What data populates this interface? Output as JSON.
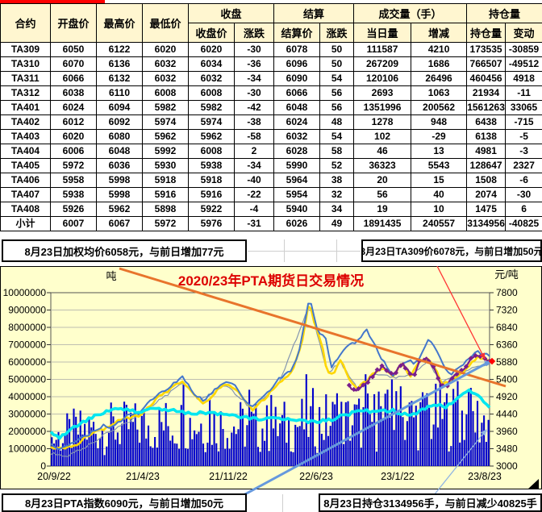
{
  "page": {
    "red_tab_color": "#FF0000"
  },
  "table": {
    "group_headers": {
      "close": "收盘",
      "settle": "结算",
      "volume": "成交量（手）",
      "oi": "持仓量"
    },
    "columns": [
      "合约",
      "开盘价",
      "最高价",
      "最低价",
      "收盘价",
      "涨跌",
      "结算价",
      "涨跌",
      "当日量",
      "增减",
      "持仓量",
      "变动"
    ],
    "rows": [
      [
        "TA309",
        6050,
        6122,
        6020,
        6020,
        -30,
        6078,
        50,
        111587,
        4210,
        173535,
        -30859
      ],
      [
        "TA310",
        6070,
        6136,
        6032,
        6034,
        -36,
        6096,
        50,
        267209,
        1686,
        766507,
        -49512
      ],
      [
        "TA311",
        6066,
        6132,
        6032,
        6032,
        -34,
        6090,
        54,
        120106,
        26496,
        460456,
        4918
      ],
      [
        "TA312",
        6038,
        6110,
        6008,
        6008,
        -30,
        6066,
        56,
        2693,
        1063,
        21934,
        -11
      ],
      [
        "TA401",
        6024,
        6094,
        5982,
        5982,
        -42,
        6048,
        56,
        1351996,
        200562,
        1561263,
        33065
      ],
      [
        "TA402",
        6012,
        6092,
        5974,
        5974,
        -38,
        6024,
        48,
        1278,
        948,
        6438,
        -715
      ],
      [
        "TA403",
        6020,
        6080,
        5962,
        5962,
        -58,
        6032,
        54,
        102,
        -29,
        6138,
        -5
      ],
      [
        "TA404",
        6006,
        6048,
        5992,
        6008,
        2,
        6028,
        58,
        46,
        13,
        4981,
        -3
      ],
      [
        "TA405",
        5972,
        6036,
        5930,
        5938,
        -34,
        5990,
        52,
        36323,
        5543,
        128647,
        2327
      ],
      [
        "TA406",
        5958,
        5998,
        5918,
        5918,
        -40,
        5964,
        38,
        20,
        15,
        1508,
        -6
      ],
      [
        "TA407",
        5938,
        5998,
        5916,
        5916,
        -22,
        5954,
        32,
        56,
        40,
        2074,
        -30
      ],
      [
        "TA408",
        5926,
        5962,
        5898,
        5922,
        -4,
        5940,
        34,
        19,
        10,
        1475,
        6
      ],
      [
        "小计",
        6007,
        6067,
        5972,
        5976,
        -31,
        6026,
        49,
        1891435,
        240557,
        3134956,
        -40825
      ]
    ]
  },
  "status_bars": {
    "top_left": "8月23日加权均价6058元，与前日增加77元",
    "top_right": "8月23日TA309价6078元，与前日增加50元",
    "bottom_left": "8月23日PTA指数6090元，与前日增加50元",
    "bottom_right": "8月23日持仓3134956手，与前日减少40825手"
  },
  "chart_data": {
    "type": "line",
    "title": "2020/23年PTA期货日交易情况",
    "title_color": "#DD0000",
    "background": "#FFFFCC",
    "left_axis": {
      "label": "吨",
      "min": 0,
      "max": 10000000,
      "step": 1000000
    },
    "right_axis": {
      "label": "元/吨",
      "min": 3000,
      "max": 7800,
      "step": 480
    },
    "x_labels": [
      "20/9/22",
      "21/4/23",
      "21/11/22",
      "22/6/23",
      "23/1/22",
      "23/8/23"
    ],
    "series": [
      {
        "name": "volume",
        "type": "bar",
        "axis": "left",
        "color": "#0000CC",
        "envelope": [
          [
            0,
            1500000
          ],
          [
            0.05,
            1900000
          ],
          [
            0.12,
            2100000
          ],
          [
            0.2,
            2200000
          ],
          [
            0.3,
            2400000
          ],
          [
            0.4,
            2300000
          ],
          [
            0.5,
            2100000
          ],
          [
            0.6,
            2500000
          ],
          [
            0.7,
            2500000
          ],
          [
            0.8,
            2700000
          ],
          [
            0.9,
            2800000
          ],
          [
            1,
            2500000
          ]
        ],
        "spikes": [
          [
            0.3,
            4700000
          ],
          [
            0.36,
            3900000
          ],
          [
            0.45,
            4400000
          ],
          [
            0.5,
            4100000
          ],
          [
            0.585,
            5300000
          ],
          [
            0.6,
            4500000
          ],
          [
            0.655,
            4200000
          ],
          [
            0.72,
            5300000
          ],
          [
            0.75,
            4300000
          ],
          [
            0.78,
            5000000
          ],
          [
            0.8,
            4600000
          ],
          [
            0.86,
            4200000
          ],
          [
            0.93,
            4900000
          ],
          [
            0.955,
            4400000
          ]
        ]
      },
      {
        "name": "weighted-average-price",
        "type": "line",
        "axis": "right",
        "color": "#8496B0",
        "width": 1.2,
        "jitter": 40,
        "points": [
          [
            0,
            3350
          ],
          [
            0.04,
            3290
          ],
          [
            0.08,
            3520
          ],
          [
            0.13,
            3950
          ],
          [
            0.18,
            4250
          ],
          [
            0.24,
            4750
          ],
          [
            0.3,
            5300
          ],
          [
            0.34,
            4820
          ],
          [
            0.4,
            5250
          ],
          [
            0.46,
            4560
          ],
          [
            0.52,
            5300
          ],
          [
            0.59,
            7450
          ],
          [
            0.63,
            5560
          ],
          [
            0.66,
            5880
          ],
          [
            0.7,
            5120
          ],
          [
            0.74,
            5580
          ],
          [
            0.78,
            5440
          ],
          [
            0.82,
            5500
          ],
          [
            0.86,
            5920
          ],
          [
            0.89,
            5280
          ],
          [
            0.93,
            5560
          ],
          [
            1,
            5860
          ]
        ]
      },
      {
        "name": "settlement-price",
        "type": "line",
        "axis": "right",
        "color": "#FFD700",
        "width": 2.6,
        "jitter": 45,
        "points": [
          [
            0,
            3550
          ],
          [
            0.03,
            3450
          ],
          [
            0.06,
            3620
          ],
          [
            0.1,
            3980
          ],
          [
            0.13,
            4060
          ],
          [
            0.16,
            4280
          ],
          [
            0.2,
            4380
          ],
          [
            0.24,
            4850
          ],
          [
            0.27,
            5100
          ],
          [
            0.3,
            5380
          ],
          [
            0.33,
            4880
          ],
          [
            0.35,
            4750
          ],
          [
            0.38,
            5100
          ],
          [
            0.4,
            5290
          ],
          [
            0.42,
            5140
          ],
          [
            0.44,
            4800
          ],
          [
            0.46,
            4550
          ],
          [
            0.49,
            4900
          ],
          [
            0.52,
            5340
          ],
          [
            0.55,
            5570
          ],
          [
            0.57,
            6300
          ],
          [
            0.59,
            7600
          ],
          [
            0.6,
            6950
          ],
          [
            0.615,
            6500
          ],
          [
            0.63,
            5600
          ],
          [
            0.645,
            5500
          ],
          [
            0.66,
            5950
          ],
          [
            0.68,
            5400
          ],
          [
            0.7,
            5160
          ],
          [
            0.72,
            5350
          ],
          [
            0.74,
            5620
          ],
          [
            0.76,
            5700
          ],
          [
            0.78,
            5470
          ],
          [
            0.8,
            5830
          ],
          [
            0.82,
            5480
          ],
          [
            0.84,
            5900
          ],
          [
            0.86,
            5960
          ],
          [
            0.88,
            5620
          ],
          [
            0.89,
            5260
          ],
          [
            0.91,
            5300
          ],
          [
            0.93,
            5550
          ],
          [
            0.95,
            5680
          ],
          [
            0.97,
            6020
          ],
          [
            1,
            5890
          ]
        ]
      },
      {
        "name": "close-price",
        "type": "line",
        "axis": "right",
        "color": "#4477CC",
        "width": 2,
        "jitter": 45,
        "points": [
          [
            0,
            3620
          ],
          [
            0.02,
            3470
          ],
          [
            0.05,
            3660
          ],
          [
            0.09,
            3900
          ],
          [
            0.12,
            4120
          ],
          [
            0.14,
            4060
          ],
          [
            0.17,
            4380
          ],
          [
            0.2,
            4450
          ],
          [
            0.24,
            4950
          ],
          [
            0.27,
            5200
          ],
          [
            0.3,
            5460
          ],
          [
            0.33,
            4950
          ],
          [
            0.35,
            4820
          ],
          [
            0.38,
            5180
          ],
          [
            0.4,
            5360
          ],
          [
            0.42,
            5210
          ],
          [
            0.44,
            4870
          ],
          [
            0.46,
            4620
          ],
          [
            0.49,
            4980
          ],
          [
            0.52,
            5420
          ],
          [
            0.55,
            5650
          ],
          [
            0.565,
            6150
          ],
          [
            0.58,
            7050
          ],
          [
            0.59,
            7680
          ],
          [
            0.6,
            7150
          ],
          [
            0.61,
            6650
          ],
          [
            0.625,
            6600
          ],
          [
            0.64,
            5760
          ],
          [
            0.66,
            6080
          ],
          [
            0.68,
            6350
          ],
          [
            0.7,
            6480
          ],
          [
            0.72,
            6780
          ],
          [
            0.735,
            6450
          ],
          [
            0.75,
            6050
          ],
          [
            0.765,
            5800
          ],
          [
            0.78,
            5460
          ],
          [
            0.8,
            5820
          ],
          [
            0.815,
            5950
          ],
          [
            0.83,
            5780
          ],
          [
            0.85,
            6250
          ],
          [
            0.862,
            6550
          ],
          [
            0.88,
            6150
          ],
          [
            0.9,
            5650
          ],
          [
            0.91,
            5500
          ],
          [
            0.93,
            5720
          ],
          [
            0.95,
            5920
          ],
          [
            0.97,
            6150
          ],
          [
            1,
            6080
          ]
        ]
      },
      {
        "name": "ta309-price",
        "type": "line",
        "axis": "right",
        "color": "#7A1E8C",
        "width": 2.2,
        "jitter": 55,
        "markers": "diamond",
        "points": [
          [
            0.68,
            5200
          ],
          [
            0.7,
            5120
          ],
          [
            0.72,
            5320
          ],
          [
            0.74,
            5620
          ],
          [
            0.755,
            5740
          ],
          [
            0.77,
            5560
          ],
          [
            0.78,
            5480
          ],
          [
            0.8,
            5860
          ],
          [
            0.815,
            5600
          ],
          [
            0.83,
            5480
          ],
          [
            0.84,
            5900
          ],
          [
            0.86,
            5980
          ],
          [
            0.875,
            5700
          ],
          [
            0.89,
            5260
          ],
          [
            0.905,
            5260
          ],
          [
            0.92,
            5520
          ],
          [
            0.94,
            5640
          ],
          [
            0.96,
            6030
          ],
          [
            0.98,
            6090
          ],
          [
            1,
            5900
          ]
        ]
      },
      {
        "name": "open-interest",
        "type": "line",
        "axis": "left",
        "color": "#00E6F0",
        "width": 3.6,
        "jitter": 90000,
        "points": [
          [
            0,
            1900000
          ],
          [
            0.02,
            1650000
          ],
          [
            0.05,
            2200000
          ],
          [
            0.08,
            2600000
          ],
          [
            0.1,
            2900000
          ],
          [
            0.13,
            3150000
          ],
          [
            0.16,
            3300000
          ],
          [
            0.2,
            3100000
          ],
          [
            0.24,
            3350000
          ],
          [
            0.28,
            3200000
          ],
          [
            0.32,
            3050000
          ],
          [
            0.36,
            3100000
          ],
          [
            0.4,
            2950000
          ],
          [
            0.44,
            2800000
          ],
          [
            0.48,
            2700000
          ],
          [
            0.52,
            2750000
          ],
          [
            0.56,
            2600000
          ],
          [
            0.6,
            2550000
          ],
          [
            0.64,
            2700000
          ],
          [
            0.68,
            3000000
          ],
          [
            0.71,
            3250000
          ],
          [
            0.74,
            3100000
          ],
          [
            0.78,
            3200000
          ],
          [
            0.82,
            2900000
          ],
          [
            0.85,
            3300000
          ],
          [
            0.88,
            3550000
          ],
          [
            0.9,
            3400000
          ],
          [
            0.93,
            3900000
          ],
          [
            0.95,
            4350000
          ],
          [
            0.97,
            4150000
          ],
          [
            1,
            3300000
          ]
        ]
      }
    ],
    "annotations": [
      {
        "name": "downtrend-line",
        "color": "#E8742C",
        "width": 3,
        "from": [
          148,
          3
        ],
        "to": [
          627,
          149
        ],
        "arrow": false
      },
      {
        "name": "uptrend-line",
        "color": "#6699DD",
        "width": 3,
        "from": [
          230,
          323
        ],
        "to": [
          608,
          118
        ],
        "arrow": true
      },
      {
        "name": "drop-arrow-line",
        "color": "#FF3333",
        "width": 1.3,
        "from": [
          542,
          0
        ],
        "to": [
          601,
          115
        ],
        "arrow": true
      },
      {
        "name": "support-arrow-line",
        "color": "#8FB4E3",
        "width": 1.3,
        "from": [
          514,
          314
        ],
        "to": [
          603,
          203
        ],
        "arrow": true
      },
      {
        "name": "last-price-marker",
        "color": "#FF0000",
        "diamond_at": [
          610,
          118
        ]
      }
    ]
  }
}
